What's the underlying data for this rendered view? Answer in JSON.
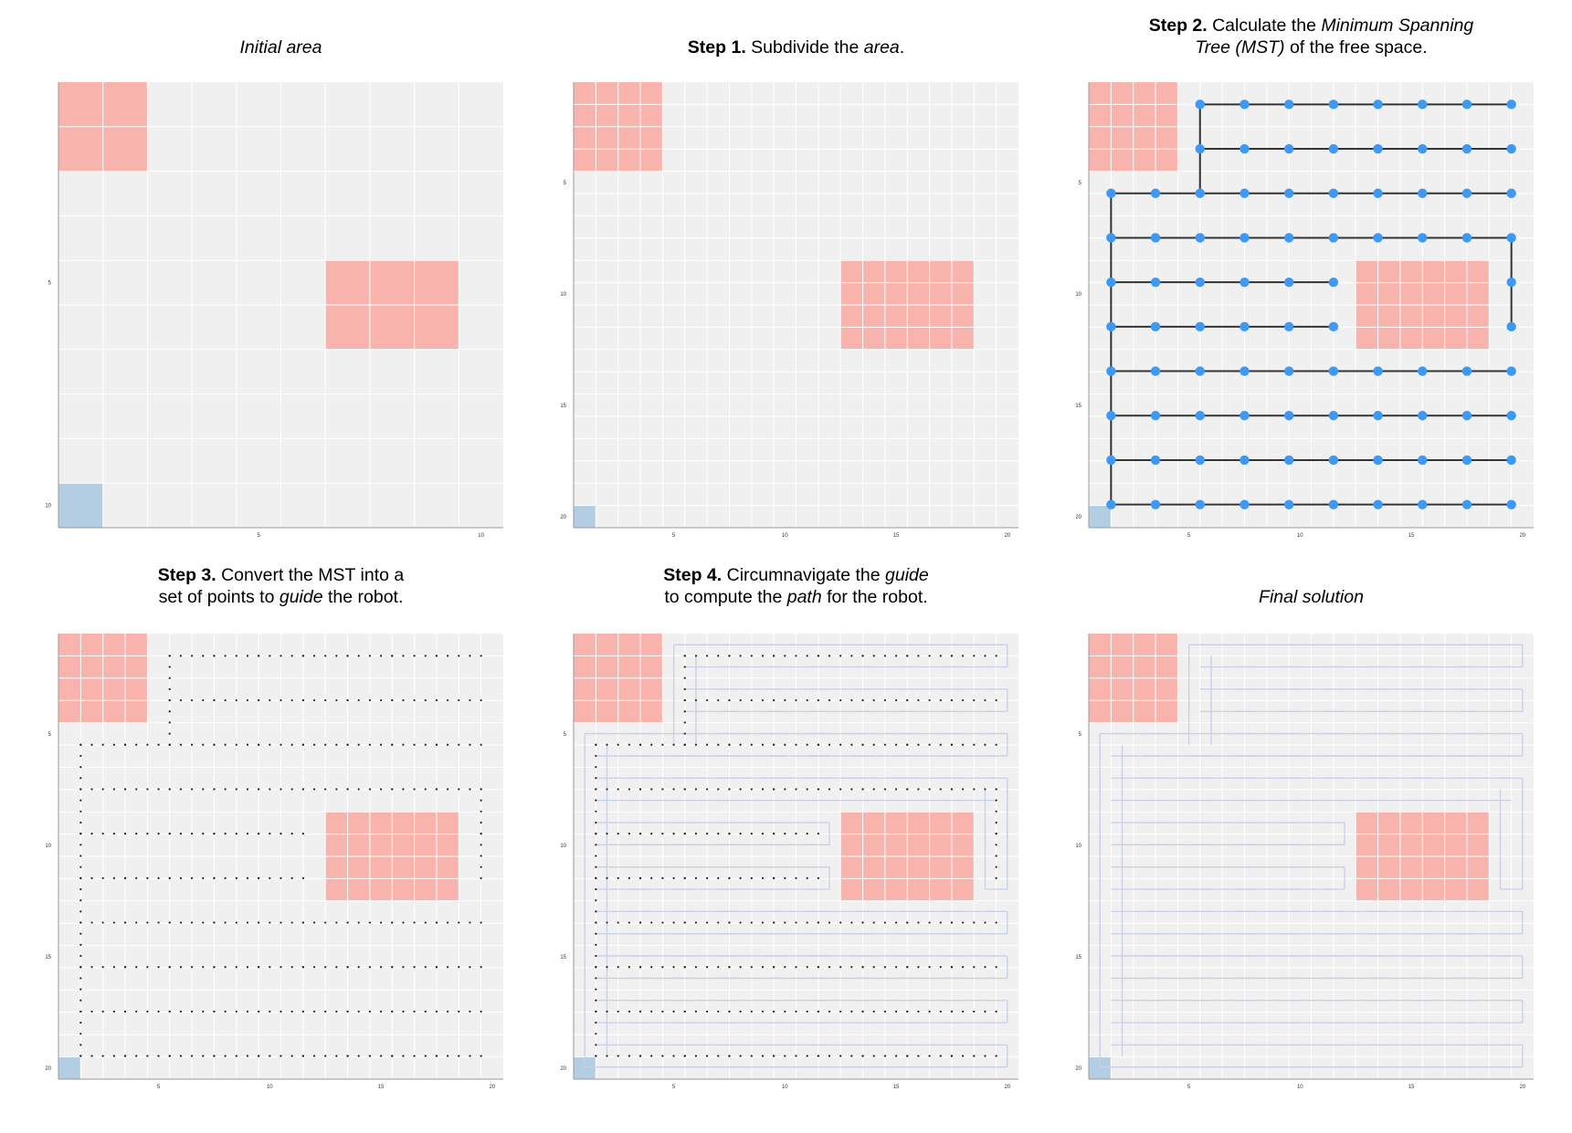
{
  "colors": {
    "panel_background": "#f0f0f0",
    "grid_line": "#ffffff",
    "obstacle": "#f9b3ad",
    "robot_start": "#b3cde3",
    "mst_edge": "#333333",
    "mst_node": "#3d99f5",
    "guide_point": "#222222",
    "path": "#c8cfe6"
  },
  "panels": [
    {
      "id": "initial",
      "title_parts": [
        {
          "text": "Initial area",
          "style": "italic"
        }
      ],
      "grid": "coarse",
      "y_ticks": [
        "5",
        "10"
      ],
      "x_ticks": [
        "5",
        "10"
      ],
      "layers": []
    },
    {
      "id": "step1",
      "title_parts": [
        {
          "text": "Step 1.",
          "style": "bold"
        },
        {
          "text": " Subdivide the ",
          "style": "normal"
        },
        {
          "text": "area",
          "style": "italic"
        },
        {
          "text": ".",
          "style": "normal"
        }
      ],
      "grid": "fine",
      "y_ticks": [
        "5",
        "10",
        "15",
        "20"
      ],
      "x_ticks": [
        "5",
        "10",
        "15",
        "20"
      ],
      "layers": []
    },
    {
      "id": "step2",
      "title_parts": [
        {
          "text": "Step 2.",
          "style": "bold"
        },
        {
          "text": " Calculate the ",
          "style": "normal"
        },
        {
          "text": "Minimum Spanning",
          "style": "italic"
        },
        {
          "text": "\n",
          "style": "break"
        },
        {
          "text": "Tree (MST)",
          "style": "italic"
        },
        {
          "text": " of the free space.",
          "style": "normal"
        }
      ],
      "grid": "fine",
      "y_ticks": [
        "5",
        "10",
        "15",
        "20"
      ],
      "x_ticks": [
        "5",
        "10",
        "15",
        "20"
      ],
      "layers": [
        "mst"
      ]
    },
    {
      "id": "step3",
      "title_parts": [
        {
          "text": "Step 3.",
          "style": "bold"
        },
        {
          "text": " Convert the MST into a",
          "style": "normal"
        },
        {
          "text": "\n",
          "style": "break"
        },
        {
          "text": "set of points to ",
          "style": "normal"
        },
        {
          "text": "guide",
          "style": "italic"
        },
        {
          "text": " the robot.",
          "style": "normal"
        }
      ],
      "grid": "fine",
      "y_ticks": [
        "5",
        "10",
        "15",
        "20"
      ],
      "x_ticks": [
        "5",
        "10",
        "15",
        "20"
      ],
      "layers": [
        "guide"
      ]
    },
    {
      "id": "step4",
      "title_parts": [
        {
          "text": "Step 4.",
          "style": "bold"
        },
        {
          "text": " Circumnavigate the ",
          "style": "normal"
        },
        {
          "text": "guide",
          "style": "italic"
        },
        {
          "text": "\n",
          "style": "break"
        },
        {
          "text": "to compute the ",
          "style": "normal"
        },
        {
          "text": "path",
          "style": "italic"
        },
        {
          "text": " for the robot.",
          "style": "normal"
        }
      ],
      "grid": "fine",
      "y_ticks": [
        "5",
        "10",
        "15",
        "20"
      ],
      "x_ticks": [
        "5",
        "10",
        "15",
        "20"
      ],
      "layers": [
        "path",
        "guide"
      ]
    },
    {
      "id": "final",
      "title_parts": [
        {
          "text": "Final solution",
          "style": "italic"
        }
      ],
      "grid": "fine",
      "y_ticks": [
        "5",
        "10",
        "15",
        "20"
      ],
      "x_ticks": [
        "5",
        "10",
        "15",
        "20"
      ],
      "layers": [
        "path"
      ]
    }
  ]
}
